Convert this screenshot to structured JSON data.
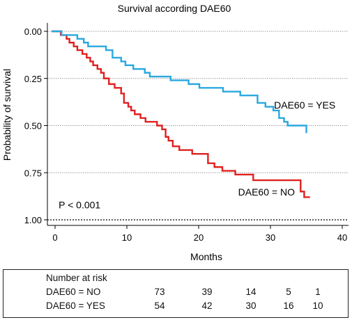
{
  "chart_data": {
    "type": "line",
    "title": "Survival according DAE60",
    "xlabel": "Months",
    "ylabel": "Probability of survival",
    "xlim": [
      -1,
      40
    ],
    "ylim": [
      0,
      1
    ],
    "y_reversed": true,
    "xticks": [
      "0",
      "10",
      "20",
      "30",
      "40"
    ],
    "yticks": [
      "0.00",
      "0.25",
      "0.50",
      "0.75",
      "1.00"
    ],
    "grid": "horizontal dotted",
    "annotations": [
      {
        "text": "DAE60 = YES",
        "x": 30.5,
        "y": 0.41
      },
      {
        "text": "DAE60 = NO",
        "x": 25.5,
        "y": 0.87
      },
      {
        "text": "P < 0.001",
        "x": 0.5,
        "y": 0.94
      }
    ],
    "series": [
      {
        "label": "DAE60 = NO",
        "color": "#e02020",
        "steps": [
          [
            -0.5,
            0.0
          ],
          [
            0.8,
            0.02
          ],
          [
            1.6,
            0.04
          ],
          [
            2.0,
            0.06
          ],
          [
            2.6,
            0.08
          ],
          [
            3.1,
            0.1
          ],
          [
            3.8,
            0.12
          ],
          [
            4.4,
            0.14
          ],
          [
            4.9,
            0.16
          ],
          [
            5.3,
            0.18
          ],
          [
            5.9,
            0.2
          ],
          [
            6.4,
            0.22
          ],
          [
            6.8,
            0.25
          ],
          [
            7.5,
            0.28
          ],
          [
            8.3,
            0.3
          ],
          [
            9.2,
            0.33
          ],
          [
            9.6,
            0.38
          ],
          [
            10.2,
            0.4
          ],
          [
            10.6,
            0.42
          ],
          [
            11.1,
            0.44
          ],
          [
            11.9,
            0.46
          ],
          [
            12.6,
            0.48
          ],
          [
            14.2,
            0.5
          ],
          [
            14.9,
            0.52
          ],
          [
            15.4,
            0.56
          ],
          [
            15.8,
            0.58
          ],
          [
            16.4,
            0.61
          ],
          [
            17.3,
            0.63
          ],
          [
            19.1,
            0.65
          ],
          [
            21.3,
            0.7
          ],
          [
            22.2,
            0.72
          ],
          [
            23.3,
            0.74
          ],
          [
            25.1,
            0.76
          ],
          [
            27.6,
            0.79
          ],
          [
            34.2,
            0.85
          ],
          [
            34.7,
            0.88
          ],
          [
            35.5,
            0.88
          ]
        ]
      },
      {
        "label": "DAE60 = YES",
        "color": "#29a8e0",
        "steps": [
          [
            -0.5,
            0.0
          ],
          [
            0.9,
            0.02
          ],
          [
            3.1,
            0.04
          ],
          [
            4.0,
            0.06
          ],
          [
            4.6,
            0.08
          ],
          [
            7.1,
            0.1
          ],
          [
            8.0,
            0.14
          ],
          [
            9.2,
            0.16
          ],
          [
            9.8,
            0.18
          ],
          [
            10.9,
            0.2
          ],
          [
            12.5,
            0.22
          ],
          [
            13.2,
            0.24
          ],
          [
            16.1,
            0.26
          ],
          [
            18.6,
            0.28
          ],
          [
            20.1,
            0.3
          ],
          [
            23.4,
            0.32
          ],
          [
            25.8,
            0.34
          ],
          [
            28.2,
            0.38
          ],
          [
            29.3,
            0.4
          ],
          [
            30.4,
            0.42
          ],
          [
            31.2,
            0.46
          ],
          [
            31.9,
            0.48
          ],
          [
            32.4,
            0.5
          ],
          [
            35.0,
            0.52
          ],
          [
            35.0,
            0.54
          ]
        ]
      }
    ],
    "risk_table": {
      "title": "Number at risk",
      "time_points": [
        0,
        10,
        20,
        30,
        40
      ],
      "rows": [
        {
          "label": "DAE60 = NO",
          "values": [
            "73",
            "39",
            "14",
            "5",
            "1"
          ]
        },
        {
          "label": "DAE60 = YES",
          "values": [
            "54",
            "42",
            "30",
            "16",
            "10"
          ]
        }
      ]
    }
  }
}
